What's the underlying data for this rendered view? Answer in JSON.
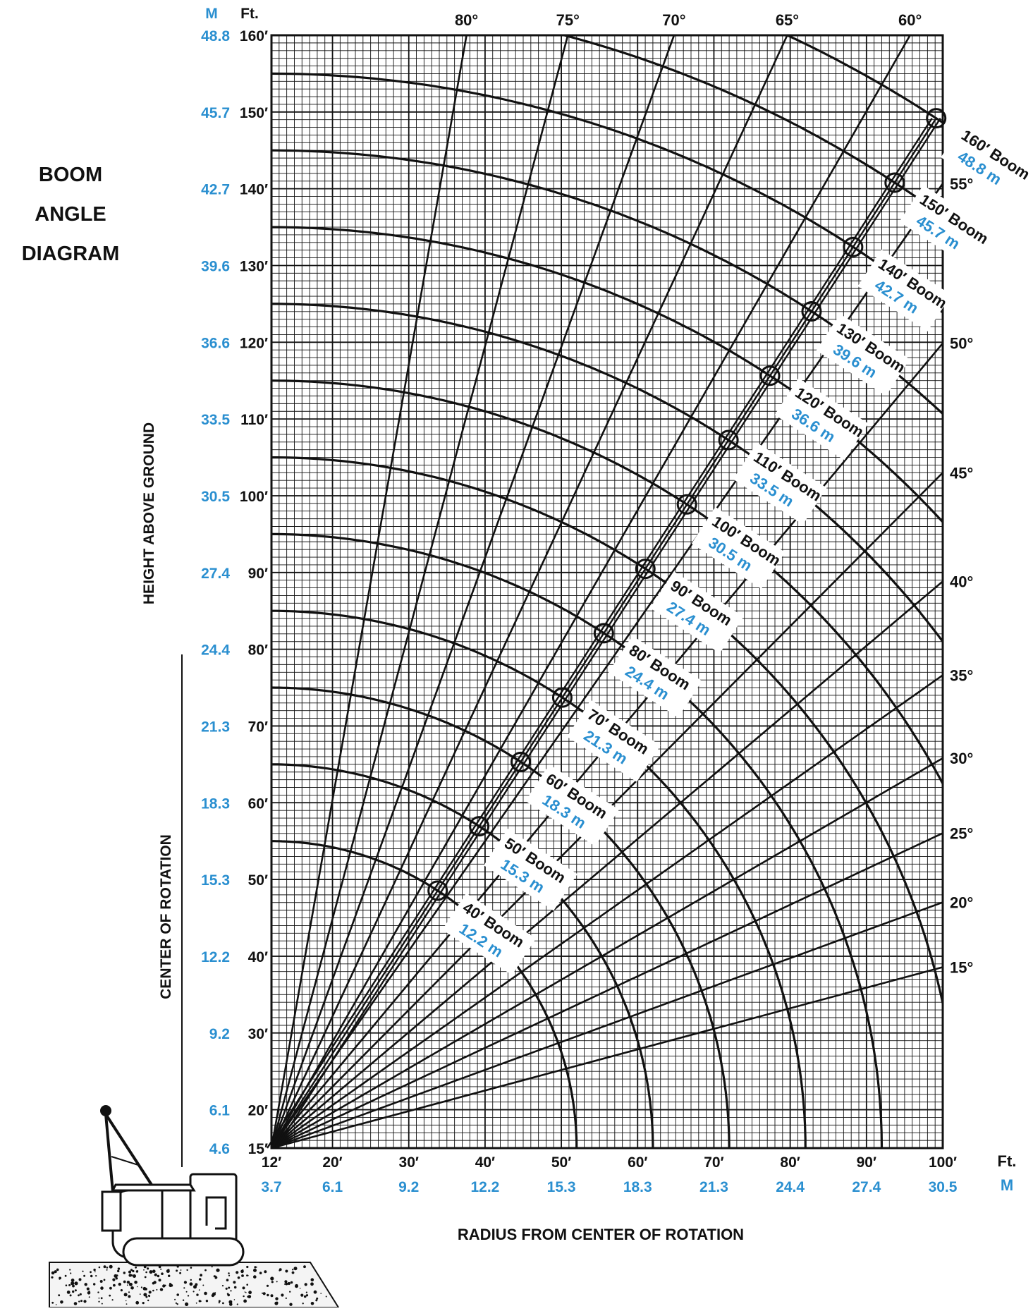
{
  "title_lines": [
    "BOOM",
    "ANGLE",
    "DIAGRAM"
  ],
  "colors": {
    "ink": "#111111",
    "metric": "#2a8fd0",
    "paper": "#ffffff"
  },
  "chart_data": {
    "type": "diagram",
    "title": "BOOM ANGLE DIAGRAM",
    "xlabel": "RADIUS FROM CENTER OF ROTATION",
    "ylabel": "HEIGHT ABOVE GROUND",
    "ylabel2": "CENTER OF ROTATION",
    "x_units": {
      "ft": "Ft.",
      "m": "M"
    },
    "y_units": {
      "ft": "Ft.",
      "m": "M"
    },
    "xlim": [
      12,
      100
    ],
    "ylim": [
      15,
      160
    ],
    "grid": true,
    "boom_pivot": {
      "radius_ft": 12,
      "height_ft": 15
    },
    "x_ticks": [
      {
        "ft": 12,
        "label_ft": "12′",
        "label_m": "3.7"
      },
      {
        "ft": 20,
        "label_ft": "20′",
        "label_m": "6.1"
      },
      {
        "ft": 30,
        "label_ft": "30′",
        "label_m": "9.2"
      },
      {
        "ft": 40,
        "label_ft": "40′",
        "label_m": "12.2"
      },
      {
        "ft": 50,
        "label_ft": "50′",
        "label_m": "15.3"
      },
      {
        "ft": 60,
        "label_ft": "60′",
        "label_m": "18.3"
      },
      {
        "ft": 70,
        "label_ft": "70′",
        "label_m": "21.3"
      },
      {
        "ft": 80,
        "label_ft": "80′",
        "label_m": "24.4"
      },
      {
        "ft": 90,
        "label_ft": "90′",
        "label_m": "27.4"
      },
      {
        "ft": 100,
        "label_ft": "100′",
        "label_m": "30.5"
      }
    ],
    "y_ticks": [
      {
        "ft": 15,
        "label_ft": "15′",
        "label_m": "4.6"
      },
      {
        "ft": 20,
        "label_ft": "20′",
        "label_m": "6.1"
      },
      {
        "ft": 30,
        "label_ft": "30′",
        "label_m": "9.2"
      },
      {
        "ft": 40,
        "label_ft": "40′",
        "label_m": "12.2"
      },
      {
        "ft": 50,
        "label_ft": "50′",
        "label_m": "15.3"
      },
      {
        "ft": 60,
        "label_ft": "60′",
        "label_m": "18.3"
      },
      {
        "ft": 70,
        "label_ft": "70′",
        "label_m": "21.3"
      },
      {
        "ft": 80,
        "label_ft": "80′",
        "label_m": "24.4"
      },
      {
        "ft": 90,
        "label_ft": "90′",
        "label_m": "27.4"
      },
      {
        "ft": 100,
        "label_ft": "100′",
        "label_m": "30.5"
      },
      {
        "ft": 110,
        "label_ft": "110′",
        "label_m": "33.5"
      },
      {
        "ft": 120,
        "label_ft": "120′",
        "label_m": "36.6"
      },
      {
        "ft": 130,
        "label_ft": "130′",
        "label_m": "39.6"
      },
      {
        "ft": 140,
        "label_ft": "140′",
        "label_m": "42.7"
      },
      {
        "ft": 150,
        "label_ft": "150′",
        "label_m": "45.7"
      },
      {
        "ft": 160,
        "label_ft": "160′",
        "label_m": "48.8"
      }
    ],
    "angle_lines": [
      {
        "deg": 80,
        "label": "80°"
      },
      {
        "deg": 75,
        "label": "75°"
      },
      {
        "deg": 70,
        "label": "70°"
      },
      {
        "deg": 65,
        "label": "65°"
      },
      {
        "deg": 60,
        "label": "60°"
      },
      {
        "deg": 55,
        "label": "55°"
      },
      {
        "deg": 50,
        "label": "50°"
      },
      {
        "deg": 45,
        "label": "45°"
      },
      {
        "deg": 40,
        "label": "40°"
      },
      {
        "deg": 35,
        "label": "35°"
      },
      {
        "deg": 30,
        "label": "30°"
      },
      {
        "deg": 25,
        "label": "25°"
      },
      {
        "deg": 20,
        "label": "20°"
      },
      {
        "deg": 15,
        "label": "15°"
      }
    ],
    "booms": [
      {
        "length_ft": 40,
        "label_ft": "40′ Boom",
        "label_m": "12.2 m"
      },
      {
        "length_ft": 50,
        "label_ft": "50′ Boom",
        "label_m": "15.3 m"
      },
      {
        "length_ft": 60,
        "label_ft": "60′ Boom",
        "label_m": "18.3 m"
      },
      {
        "length_ft": 70,
        "label_ft": "70′ Boom",
        "label_m": "21.3 m"
      },
      {
        "length_ft": 80,
        "label_ft": "80′ Boom",
        "label_m": "24.4 m"
      },
      {
        "length_ft": 90,
        "label_ft": "90′ Boom",
        "label_m": "27.4 m"
      },
      {
        "length_ft": 100,
        "label_ft": "100′ Boom",
        "label_m": "30.5 m"
      },
      {
        "length_ft": 110,
        "label_ft": "110′ Boom",
        "label_m": "33.5 m"
      },
      {
        "length_ft": 120,
        "label_ft": "120′ Boom",
        "label_m": "36.6 m"
      },
      {
        "length_ft": 130,
        "label_ft": "130′ Boom",
        "label_m": "39.6 m"
      },
      {
        "length_ft": 140,
        "label_ft": "140′ Boom",
        "label_m": "42.7 m"
      },
      {
        "length_ft": 150,
        "label_ft": "150′ Boom",
        "label_m": "45.7 m"
      },
      {
        "length_ft": 160,
        "label_ft": "160′ Boom",
        "label_m": "48.8 m"
      }
    ],
    "reference_boom_angle_deg": 57
  }
}
